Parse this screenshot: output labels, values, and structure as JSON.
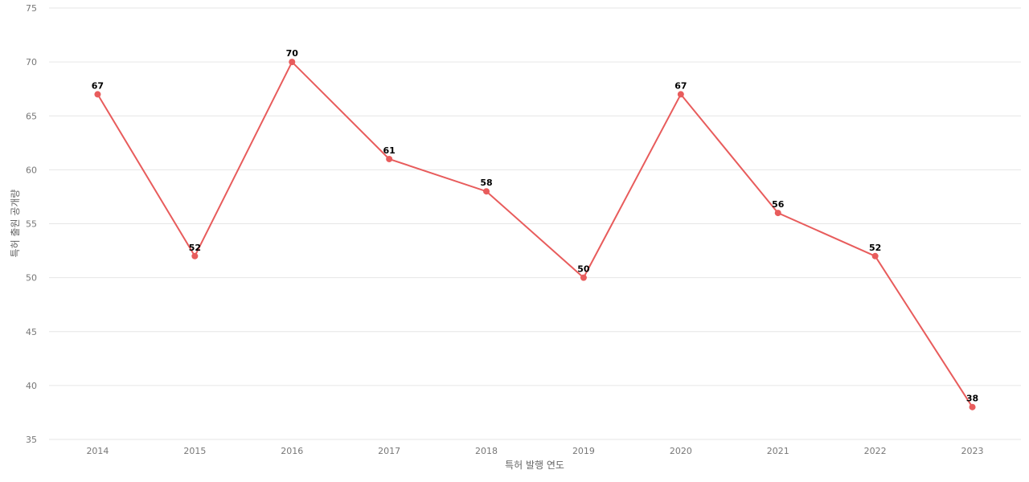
{
  "chart_data": {
    "type": "line",
    "x": [
      "2014",
      "2015",
      "2016",
      "2017",
      "2018",
      "2019",
      "2020",
      "2021",
      "2022",
      "2023"
    ],
    "series": [
      {
        "values": [
          67,
          52,
          70,
          61,
          58,
          50,
          67,
          56,
          52,
          38
        ],
        "color": "#e85c5c"
      }
    ],
    "xlabel": "특허 발행 연도",
    "ylabel": "특허 출원 공개량",
    "ylim": [
      35,
      75
    ],
    "yticks": [
      35,
      40,
      45,
      50,
      55,
      60,
      65,
      70,
      75
    ],
    "grid": true,
    "data_labels": true
  }
}
